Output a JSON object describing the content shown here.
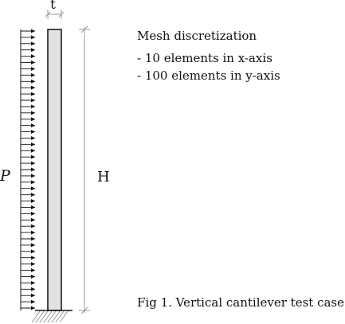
{
  "labels": {
    "thickness": "t",
    "height": "H",
    "pressure": "P"
  },
  "mesh": {
    "title": "Mesh discretization",
    "x_axis": "- 10 elements in x-axis",
    "y_axis": "- 100 elements in y-axis"
  },
  "caption": "Fig 1. Vertical cantilever test case",
  "colors": {
    "beam_fill": "#e2e2e2",
    "stroke": "#111111",
    "dimension_line": "#999999"
  }
}
